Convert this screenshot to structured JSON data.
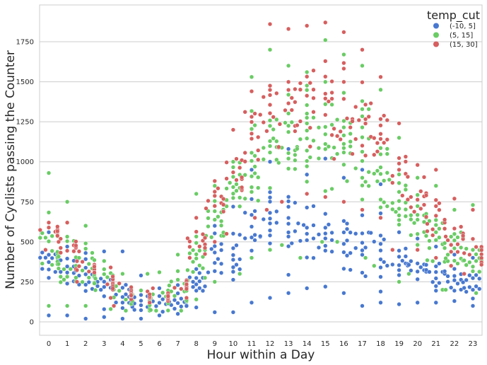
{
  "chart_data": {
    "type": "scatter",
    "subtype": "swarm",
    "xlabel": "Hour within a Day",
    "ylabel": "Number of Cyclists passing the Counter",
    "categories": [
      "0",
      "1",
      "2",
      "3",
      "4",
      "5",
      "6",
      "7",
      "8",
      "9",
      "10",
      "11",
      "12",
      "13",
      "14",
      "15",
      "16",
      "17",
      "18",
      "19",
      "20",
      "21",
      "22",
      "23"
    ],
    "ylim": [
      -90,
      1960
    ],
    "yticks": [
      0,
      250,
      500,
      750,
      1000,
      1250,
      1500,
      1750
    ],
    "grid": "horizontal",
    "legend": {
      "title": "temp_cut",
      "placement": "top-right"
    },
    "series": [
      {
        "name": "(-10, 5]",
        "color": "#4878cf",
        "summary": {
          "min": [
            40,
            40,
            20,
            30,
            20,
            20,
            40,
            50,
            90,
            60,
            60,
            120,
            150,
            180,
            210,
            220,
            180,
            100,
            120,
            110,
            120,
            120,
            130,
            100
          ],
          "median": [
            350,
            330,
            270,
            220,
            140,
            120,
            110,
            130,
            250,
            400,
            430,
            560,
            580,
            590,
            560,
            570,
            530,
            480,
            440,
            360,
            330,
            300,
            250,
            230
          ],
          "max": [
            560,
            470,
            430,
            440,
            440,
            290,
            210,
            230,
            330,
            600,
            720,
            950,
            1000,
            1080,
            920,
            1020,
            900,
            950,
            860,
            560,
            520,
            470,
            420,
            400
          ],
          "count": 14
        }
      },
      {
        "name": "(5, 15]",
        "color": "#6acc65",
        "summary": {
          "min": [
            100,
            100,
            100,
            80,
            70,
            70,
            70,
            70,
            140,
            250,
            300,
            400,
            450,
            480,
            400,
            500,
            500,
            400,
            350,
            250,
            300,
            200,
            200,
            180
          ],
          "median": [
            470,
            400,
            330,
            250,
            160,
            140,
            150,
            200,
            380,
            650,
            800,
            980,
            1080,
            1180,
            1150,
            1150,
            1100,
            1050,
            900,
            700,
            600,
            500,
            430,
            380
          ],
          "max": [
            930,
            750,
            600,
            380,
            300,
            300,
            310,
            420,
            800,
            850,
            1000,
            1530,
            1700,
            1600,
            1560,
            1760,
            1670,
            1600,
            1450,
            1150,
            900,
            850,
            700,
            730
          ],
          "count": 18
        }
      },
      {
        "name": "(15, 30]",
        "color": "#d65f5f",
        "summary": {
          "min": [
            450,
            330,
            250,
            150,
            100,
            120,
            130,
            150,
            400,
            500,
            550,
            650,
            700,
            750,
            800,
            780,
            750,
            700,
            650,
            450,
            450,
            400,
            350,
            300
          ],
          "median": [
            560,
            450,
            340,
            250,
            170,
            160,
            160,
            230,
            500,
            750,
            950,
            1150,
            1300,
            1350,
            1380,
            1350,
            1300,
            1250,
            1150,
            900,
            750,
            650,
            530,
            460
          ],
          "max": [
            620,
            620,
            440,
            340,
            240,
            190,
            210,
            260,
            650,
            880,
            1200,
            1440,
            1860,
            1830,
            1850,
            1870,
            1810,
            1700,
            1530,
            1240,
            980,
            950,
            770,
            700
          ],
          "count": 14
        }
      }
    ]
  }
}
